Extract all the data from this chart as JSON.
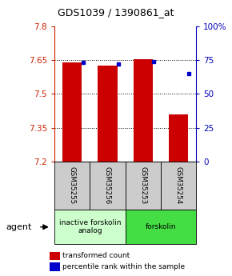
{
  "title": "GDS1039 / 1390861_at",
  "samples": [
    "GSM35255",
    "GSM35256",
    "GSM35253",
    "GSM35254"
  ],
  "bar_values": [
    7.64,
    7.625,
    7.655,
    7.41
  ],
  "dot_values": [
    73,
    72,
    74,
    65
  ],
  "y_min": 7.2,
  "y_max": 7.8,
  "y_ticks": [
    7.2,
    7.35,
    7.5,
    7.65,
    7.8
  ],
  "y2_ticks": [
    0,
    25,
    50,
    75,
    100
  ],
  "bar_color": "#cc0000",
  "dot_color": "#0000cc",
  "left_axis_color": "#cc2200",
  "right_axis_color": "#0000bb",
  "groups": [
    {
      "label": "inactive forskolin\nanalog",
      "start": 0,
      "end": 2,
      "color": "#ccffcc"
    },
    {
      "label": "forskolin",
      "start": 2,
      "end": 4,
      "color": "#44dd44"
    }
  ],
  "agent_label": "agent",
  "legend_items": [
    {
      "color": "#cc0000",
      "label": "transformed count"
    },
    {
      "color": "#0000cc",
      "label": "percentile rank within the sample"
    }
  ],
  "bar_width": 0.55,
  "sample_box_color": "#cccccc"
}
